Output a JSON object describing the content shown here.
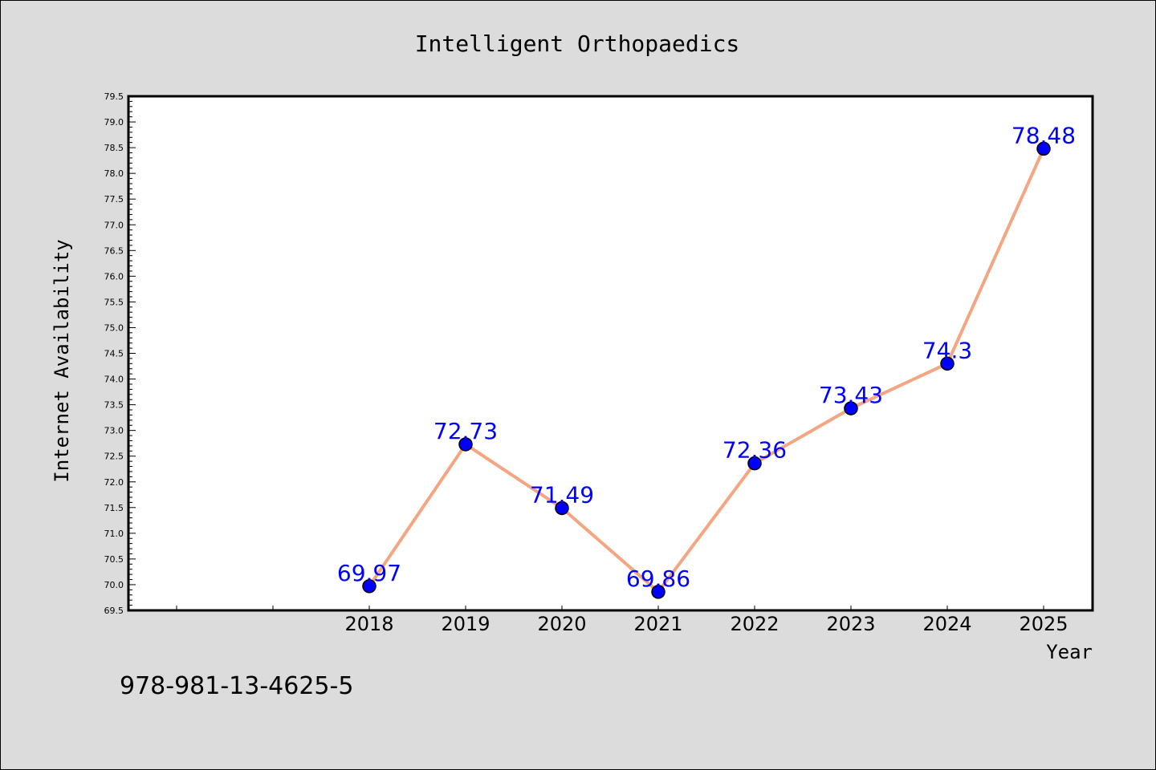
{
  "chart_data": {
    "type": "line",
    "title": "Intelligent Orthopaedics",
    "xlabel": "Year",
    "ylabel": "Internet Availability",
    "categories": [
      "2018",
      "2019",
      "2020",
      "2021",
      "2022",
      "2023",
      "2024",
      "2025"
    ],
    "values": [
      69.97,
      72.73,
      71.49,
      69.86,
      72.36,
      73.43,
      74.3,
      78.48
    ],
    "data_labels": [
      "69.97",
      "72.73",
      "71.49",
      "69.86",
      "72.36",
      "73.43",
      "74.3",
      "78.48"
    ],
    "ylim": [
      69.5,
      79.5
    ],
    "yticks": [
      "69.5",
      "70.0",
      "70.5",
      "71.0",
      "71.5",
      "72.0",
      "72.5",
      "73.0",
      "73.5",
      "74.0",
      "74.5",
      "75.0",
      "75.5",
      "76.0",
      "76.5",
      "77.0",
      "77.5",
      "78.0",
      "78.5",
      "79.0",
      "79.5"
    ],
    "grid": false,
    "legend": "none",
    "colors": {
      "line": "#f4a582",
      "marker": "#0000ff",
      "label": "#0000ff",
      "background": "#dcdcdc",
      "plot": "#ffffff"
    }
  },
  "footer_text": "978-981-13-4625-5"
}
